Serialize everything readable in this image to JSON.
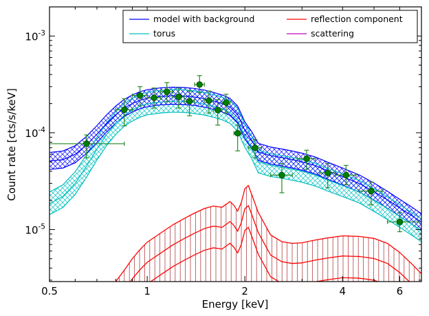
{
  "chart_data": {
    "type": "line",
    "xlabel": "Energy [keV]",
    "ylabel": "Count rate [cts/s/keV]",
    "x_scale": "log",
    "y_scale": "log",
    "xlim": [
      0.5,
      7.0
    ],
    "ylim": [
      2.9e-06,
      0.002
    ],
    "x_ticks": [
      {
        "value": 0.5,
        "label": "0.5"
      },
      {
        "value": 1,
        "label": "1"
      },
      {
        "value": 2,
        "label": "2"
      },
      {
        "value": 4,
        "label": "4"
      },
      {
        "value": 6,
        "label": "6"
      }
    ],
    "y_ticks": [
      {
        "value": 1e-05,
        "mantissa": "10",
        "exponent": "-5"
      },
      {
        "value": 0.0001,
        "mantissa": "10",
        "exponent": "-4"
      },
      {
        "value": 0.001,
        "mantissa": "10",
        "exponent": "-3"
      }
    ],
    "legend_position": "top-right",
    "legend": [
      {
        "label": "model with background",
        "color": "#0000ff"
      },
      {
        "label": "reflection component",
        "color": "#ff0000"
      },
      {
        "label": "torus",
        "color": "#00bfbf"
      },
      {
        "label": "scattering",
        "color": "#bf00bf"
      }
    ],
    "band_x": [
      0.5,
      0.55,
      0.6,
      0.65,
      0.7,
      0.75,
      0.8,
      0.85,
      0.9,
      0.95,
      1.0,
      1.1,
      1.2,
      1.3,
      1.4,
      1.5,
      1.6,
      1.7,
      1.8,
      1.9,
      2.0,
      2.1,
      2.2,
      2.4,
      2.6,
      2.8,
      3.0,
      3.3,
      3.6,
      4.0,
      4.5,
      5.0,
      5.5,
      6.0,
      6.5,
      7.0
    ],
    "series": [
      {
        "name": "model with background",
        "color": "#0000ff",
        "values": [
          5.8e-05,
          6e-05,
          6.8e-05,
          8.5e-05,
          0.00011,
          0.000142,
          0.000175,
          0.000205,
          0.000228,
          0.000246,
          0.000258,
          0.00027,
          0.000274,
          0.000272,
          0.000266,
          0.000256,
          0.000242,
          0.000228,
          0.00021,
          0.000175,
          0.00012,
          9.5e-05,
          7.2e-05,
          6.6e-05,
          6.3e-05,
          6e-05,
          5.7e-05,
          5.2e-05,
          4.6e-05,
          4e-05,
          3.4e-05,
          2.8e-05,
          2.3e-05,
          1.9e-05,
          1.6e-05,
          1.35e-05
        ]
      },
      {
        "name": "torus",
        "color": "#00bfbf",
        "values": [
          1.85e-05,
          2.2e-05,
          3e-05,
          4.5e-05,
          6.8e-05,
          9.6e-05,
          0.000125,
          0.000152,
          0.000172,
          0.000188,
          0.000199,
          0.000208,
          0.000212,
          0.000211,
          0.000205,
          0.000198,
          0.000188,
          0.000177,
          0.000162,
          0.000135,
          9.2e-05,
          7e-05,
          5e-05,
          4.6e-05,
          4.4e-05,
          4.2e-05,
          4e-05,
          3.65e-05,
          3.25e-05,
          2.85e-05,
          2.45e-05,
          2e-05,
          1.65e-05,
          1.37e-05,
          1.15e-05,
          9.7e-06
        ]
      },
      {
        "name": "reflection component",
        "color": "#ff0000",
        "x": [
          0.8,
          0.85,
          0.9,
          0.95,
          1.0,
          1.1,
          1.2,
          1.3,
          1.4,
          1.5,
          1.6,
          1.7,
          1.8,
          1.85,
          1.9,
          1.95,
          2.0,
          2.05,
          2.1,
          2.2,
          2.4,
          2.6,
          2.8,
          3.0,
          3.3,
          3.6,
          4.0,
          4.5,
          5.0,
          5.5,
          6.0,
          6.5,
          7.0
        ],
        "values": [
          2.9e-06,
          3.8e-06,
          5e-06,
          6.2e-06,
          7.4e-06,
          9.2e-06,
          1.12e-05,
          1.3e-05,
          1.48e-05,
          1.65e-05,
          1.75e-05,
          1.7e-05,
          1.95e-05,
          1.78e-05,
          1.55e-05,
          1.9e-05,
          2.65e-05,
          2.85e-05,
          2.3e-05,
          1.5e-05,
          8.8e-06,
          7.5e-06,
          7.2e-06,
          7.3e-06,
          7.8e-06,
          8.2e-06,
          8.6e-06,
          8.5e-06,
          8.1e-06,
          7.2e-06,
          5.8e-06,
          4.5e-06,
          3.5e-06
        ]
      }
    ],
    "data_points": [
      {
        "x": 0.65,
        "y": 7.7e-05,
        "xerr": [
          0.5,
          0.85
        ],
        "yerr": [
          5.5e-05,
          9.5e-05
        ]
      },
      {
        "x": 0.85,
        "y": 0.000173,
        "xerr": [
          0.8,
          0.9
        ],
        "yerr": [
          0.000118,
          0.000225
        ]
      },
      {
        "x": 0.95,
        "y": 0.000243,
        "xerr": [
          0.9,
          1.0
        ],
        "yerr": [
          0.00019,
          0.0003
        ]
      },
      {
        "x": 1.05,
        "y": 0.00023,
        "xerr": [
          1.0,
          1.1
        ],
        "yerr": [
          0.00018,
          0.00029
        ]
      },
      {
        "x": 1.15,
        "y": 0.000265,
        "xerr": [
          1.1,
          1.2
        ],
        "yerr": [
          0.00021,
          0.00033
        ]
      },
      {
        "x": 1.25,
        "y": 0.000235,
        "xerr": [
          1.2,
          1.3
        ],
        "yerr": [
          0.00018,
          0.00029
        ]
      },
      {
        "x": 1.35,
        "y": 0.000212,
        "xerr": [
          1.3,
          1.4
        ],
        "yerr": [
          0.00015,
          0.00027
        ]
      },
      {
        "x": 1.45,
        "y": 0.000315,
        "xerr": [
          1.4,
          1.5
        ],
        "yerr": [
          0.00026,
          0.00039
        ]
      },
      {
        "x": 1.55,
        "y": 0.000215,
        "xerr": [
          1.5,
          1.6
        ],
        "yerr": [
          0.00016,
          0.00027
        ]
      },
      {
        "x": 1.65,
        "y": 0.000172,
        "xerr": [
          1.6,
          1.7
        ],
        "yerr": [
          0.00012,
          0.00022
        ]
      },
      {
        "x": 1.75,
        "y": 0.000205,
        "xerr": [
          1.7,
          1.8
        ],
        "yerr": [
          0.00016,
          0.00025
        ]
      },
      {
        "x": 1.9,
        "y": 9.9e-05,
        "xerr": [
          1.85,
          1.95
        ],
        "yerr": [
          6.5e-05,
          0.00012
        ]
      },
      {
        "x": 2.15,
        "y": 7e-05,
        "xerr": [
          2.05,
          2.25
        ],
        "yerr": [
          5.5e-05,
          8.5e-05
        ]
      },
      {
        "x": 2.6,
        "y": 3.65e-05,
        "xerr": [
          2.4,
          2.8
        ],
        "yerr": [
          2.4e-05,
          4.8e-05
        ]
      },
      {
        "x": 3.1,
        "y": 5.4e-05,
        "xerr": [
          2.9,
          3.3
        ],
        "yerr": [
          4.2e-05,
          6.6e-05
        ]
      },
      {
        "x": 3.6,
        "y": 3.85e-05,
        "xerr": [
          3.4,
          3.8
        ],
        "yerr": [
          2.7e-05,
          4.8e-05
        ]
      },
      {
        "x": 4.1,
        "y": 3.65e-05,
        "xerr": [
          3.8,
          4.4
        ],
        "yerr": [
          2.9e-05,
          4.6e-05
        ]
      },
      {
        "x": 4.9,
        "y": 2.5e-05,
        "xerr": [
          4.5,
          5.3
        ],
        "yerr": [
          1.8e-05,
          3.1e-05
        ]
      },
      {
        "x": 6.0,
        "y": 1.2e-05,
        "xerr": [
          5.5,
          6.9
        ],
        "yerr": [
          9.5e-06,
          1.5e-05
        ]
      }
    ]
  }
}
